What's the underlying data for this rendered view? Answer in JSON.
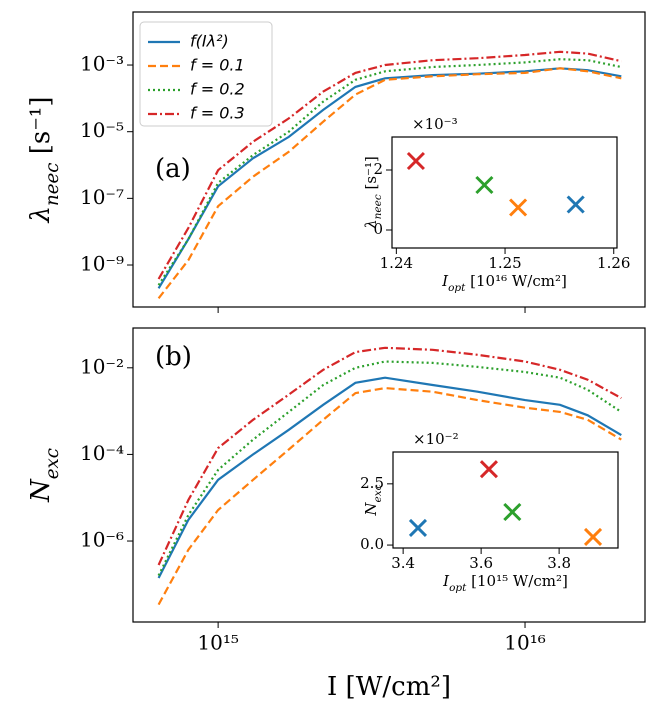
{
  "chart_data": [
    {
      "type": "line",
      "panel_label": "(a)",
      "ylabel": [
        "λ",
        "neec",
        " [s⁻¹]"
      ],
      "xscale": "log",
      "yscale": "log",
      "xlim": [
        528000000000000.0,
        2.46e+16
      ],
      "ylim": [
        5.5e-11,
        0.039
      ],
      "xticks": [
        1000000000000000.0,
        1e+16
      ],
      "show_xticklabels": false,
      "yticks": [
        {
          "value": 1e-09,
          "label": "10⁻⁹"
        },
        {
          "value": 1e-07,
          "label": "10⁻⁷"
        },
        {
          "value": 1e-05,
          "label": "10⁻⁵"
        },
        {
          "value": 0.001,
          "label": "10⁻³"
        }
      ],
      "legend": "upper left",
      "x": [
        640000000000000.0,
        800000000000000.0,
        1000000000000000.0,
        1300000000000000.0,
        1700000000000000.0,
        2200000000000000.0,
        2800000000000000.0,
        3500000000000000.0,
        5000000000000000.0,
        7000000000000000.0,
        1e+16,
        1.3e+16,
        1.6e+16,
        2.06e+16
      ],
      "series": [
        {
          "name": "f(Iλ²)",
          "color": "#1f77b4",
          "linestyle": "solid",
          "values": [
            2e-10,
            6e-09,
            2.3e-07,
            1.6e-06,
            7e-06,
            4.5e-05,
            0.00022,
            0.0004,
            0.0005,
            0.00055,
            0.00065,
            0.0008,
            0.0007,
            0.00046
          ]
        },
        {
          "name": "f = 0.1",
          "color": "#ff7f0e",
          "linestyle": "dashed",
          "values": [
            1e-10,
            1.4e-09,
            5.8e-08,
            4.5e-07,
            2.5e-06,
            2e-05,
            0.00013,
            0.00036,
            0.00046,
            0.00053,
            0.00058,
            0.0008,
            0.00065,
            0.0004
          ]
        },
        {
          "name": "f = 0.2",
          "color": "#2ca02c",
          "linestyle": "dotted",
          "values": [
            2.5e-10,
            6e-09,
            2.9e-07,
            2e-06,
            1e-05,
            8e-05,
            0.00036,
            0.00065,
            0.00087,
            0.001,
            0.0012,
            0.0015,
            0.0014,
            0.00087
          ]
        },
        {
          "name": "f = 0.3",
          "color": "#d62728",
          "linestyle": "dashdot",
          "values": [
            3.8e-10,
            1.3e-08,
            7e-07,
            5e-06,
            2.5e-05,
            0.00016,
            0.00058,
            0.001,
            0.0014,
            0.0016,
            0.002,
            0.0025,
            0.0022,
            0.0013
          ]
        }
      ]
    },
    {
      "type": "line",
      "panel_label": "(b)",
      "ylabel": [
        "N",
        "exc"
      ],
      "xlabel": "I [W/cm²]",
      "xscale": "log",
      "yscale": "log",
      "xlim": [
        528000000000000.0,
        2.46e+16
      ],
      "ylim": [
        1.35e-08,
        0.083
      ],
      "xticks": [
        {
          "value": 1000000000000000.0,
          "label": "10¹⁵"
        },
        {
          "value": 1e+16,
          "label": "10¹⁶"
        }
      ],
      "show_xticklabels": true,
      "yticks": [
        {
          "value": 1e-06,
          "label": "10⁻⁶"
        },
        {
          "value": 0.0001,
          "label": "10⁻⁴"
        },
        {
          "value": 0.01,
          "label": "10⁻²"
        }
      ],
      "x": [
        640000000000000.0,
        800000000000000.0,
        1000000000000000.0,
        1300000000000000.0,
        1700000000000000.0,
        2200000000000000.0,
        2800000000000000.0,
        3500000000000000.0,
        5000000000000000.0,
        7000000000000000.0,
        1e+16,
        1.3e+16,
        1.6e+16,
        2.06e+16
      ],
      "series": [
        {
          "color": "#1f77b4",
          "linestyle": "solid",
          "values": [
            1.4e-07,
            3.1e-06,
            2.6e-05,
            0.0001,
            0.00037,
            0.0014,
            0.0045,
            0.0059,
            0.004,
            0.0028,
            0.0018,
            0.0014,
            0.0008,
            0.00028
          ]
        },
        {
          "color": "#ff7f0e",
          "linestyle": "dashed",
          "values": [
            3.4e-08,
            6.3e-07,
            5.2e-06,
            2.6e-05,
            0.00013,
            0.00063,
            0.0026,
            0.0034,
            0.0028,
            0.0018,
            0.0012,
            0.00096,
            0.00063,
            0.00022
          ]
        },
        {
          "color": "#2ca02c",
          "linestyle": "dotted",
          "values": [
            1.6e-07,
            4e-06,
            4.4e-05,
            0.00022,
            0.00096,
            0.004,
            0.01,
            0.014,
            0.013,
            0.0105,
            0.008,
            0.0059,
            0.0031,
            0.00096
          ]
        },
        {
          "color": "#d62728",
          "linestyle": "dashdot",
          "values": [
            2.8e-07,
            8.9e-06,
            0.00014,
            0.00063,
            0.0024,
            0.009,
            0.023,
            0.029,
            0.026,
            0.02,
            0.014,
            0.009,
            0.0053,
            0.002
          ]
        }
      ]
    },
    {
      "type": "scatter",
      "offset_text": "×10⁻³",
      "xlabel": [
        "I",
        "opt",
        " [10¹⁶ W/cm²]"
      ],
      "ylabel": [
        "λ",
        "neec",
        " [s⁻¹]"
      ],
      "xlim": [
        1.2396,
        1.2603
      ],
      "ylim": [
        -0.6,
        3.1
      ],
      "xticks": [
        1.24,
        1.25,
        1.26
      ],
      "yticks": [
        0,
        2
      ],
      "show_xticklabels": true,
      "x": [
        1.2418,
        1.2481,
        1.2512,
        1.2565
      ],
      "values": [
        2.3,
        1.5,
        0.75,
        0.85
      ],
      "colors": [
        "#d62728",
        "#2ca02c",
        "#ff7f0e",
        "#1f77b4"
      ]
    },
    {
      "type": "scatter",
      "offset_text": "×10⁻²",
      "xlabel": [
        "I",
        "opt",
        " [10¹⁵ W/cm²]"
      ],
      "ylabel": [
        "N",
        "exc"
      ],
      "xlim": [
        3.374,
        3.951
      ],
      "ylim": [
        -0.12,
        3.8
      ],
      "xticks": [
        3.4,
        3.6,
        3.8
      ],
      "yticks": [
        {
          "value": 0,
          "label": "0.0"
        },
        2.5
      ],
      "show_xticklabels": true,
      "x": [
        3.438,
        3.62,
        3.68,
        3.887
      ],
      "values": [
        0.7,
        3.1,
        1.35,
        0.33
      ],
      "colors": [
        "#1f77b4",
        "#d62728",
        "#2ca02c",
        "#ff7f0e"
      ]
    }
  ]
}
